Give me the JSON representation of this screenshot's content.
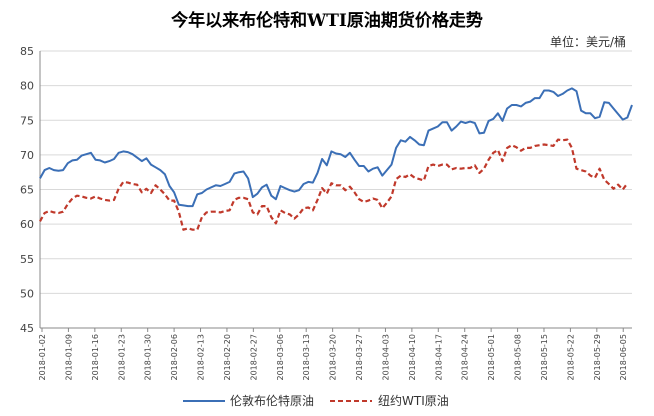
{
  "chart_data": {
    "type": "line",
    "title": "今年以来布伦特和WTI原油期货价格走势",
    "unit_label": "单位：美元/桶",
    "ylim": [
      45,
      85
    ],
    "yticks": [
      45,
      50,
      55,
      60,
      65,
      70,
      75,
      80,
      85
    ],
    "x_ticks": [
      "2018-01-02",
      "2018-01-09",
      "2018-01-16",
      "2018-01-23",
      "2018-01-30",
      "2018-02-06",
      "2018-02-13",
      "2018-02-20",
      "2018-02-27",
      "2018-03-06",
      "2018-03-13",
      "2018-03-20",
      "2018-03-27",
      "2018-04-03",
      "2018-04-10",
      "2018-04-17",
      "2018-04-24",
      "2018-05-01",
      "2018-05-08",
      "2018-05-15",
      "2018-05-22",
      "2018-05-29",
      "2018-06-05"
    ],
    "legend_placement": "bottom",
    "series": [
      {
        "name": "伦敦布伦特原油",
        "color": "#3b6fb6",
        "style": "solid",
        "values": [
          66.6,
          67.8,
          68.1,
          67.8,
          67.7,
          67.8,
          68.8,
          69.2,
          69.3,
          69.9,
          70.1,
          70.3,
          69.3,
          69.2,
          68.9,
          69.1,
          69.4,
          70.3,
          70.5,
          70.4,
          70.1,
          69.6,
          69.1,
          69.5,
          68.6,
          68.2,
          67.8,
          67.2,
          65.5,
          64.6,
          62.8,
          62.7,
          62.6,
          62.6,
          64.3,
          64.5,
          65.0,
          65.3,
          65.6,
          65.5,
          65.8,
          66.1,
          67.3,
          67.5,
          67.6,
          66.6,
          63.9,
          64.4,
          65.3,
          65.7,
          64.1,
          63.6,
          65.5,
          65.2,
          64.9,
          64.7,
          64.9,
          65.8,
          66.1,
          66.0,
          67.4,
          69.4,
          68.5,
          70.5,
          70.2,
          70.1,
          69.7,
          70.3,
          69.3,
          68.4,
          68.4,
          67.6,
          68.0,
          68.2,
          67.0,
          67.8,
          68.6,
          71.0,
          72.1,
          71.9,
          72.6,
          72.1,
          71.5,
          71.4,
          73.5,
          73.8,
          74.1,
          74.7,
          74.7,
          73.5,
          74.1,
          74.8,
          74.6,
          74.8,
          74.6,
          73.1,
          73.2,
          74.9,
          75.2,
          76.0,
          74.9,
          76.7,
          77.2,
          77.2,
          77.0,
          77.5,
          77.7,
          78.2,
          78.2,
          79.3,
          79.3,
          79.1,
          78.5,
          78.8,
          79.3,
          79.6,
          79.2,
          76.4,
          76.0,
          76.0,
          75.3,
          75.5,
          77.6,
          77.5,
          76.7,
          75.9,
          75.1,
          75.4,
          77.2
        ]
      },
      {
        "name": "纽约WTI原油",
        "color": "#c0392b",
        "style": "dashed",
        "values": [
          60.4,
          61.6,
          61.9,
          61.7,
          61.6,
          61.8,
          62.9,
          63.7,
          64.1,
          64.0,
          63.8,
          63.7,
          64.0,
          63.7,
          63.5,
          63.4,
          63.5,
          65.1,
          66.1,
          66.0,
          65.8,
          65.7,
          64.6,
          65.1,
          64.5,
          65.6,
          65.0,
          64.3,
          63.4,
          63.4,
          61.8,
          59.2,
          59.4,
          59.2,
          59.2,
          61.0,
          61.7,
          61.8,
          61.8,
          61.7,
          61.9,
          62.0,
          63.5,
          63.8,
          63.8,
          63.6,
          61.7,
          61.4,
          62.6,
          62.6,
          61.0,
          60.1,
          62.0,
          61.6,
          61.4,
          60.8,
          61.4,
          62.3,
          62.4,
          62.0,
          63.5,
          65.2,
          64.4,
          65.9,
          65.6,
          65.6,
          64.9,
          65.4,
          64.6,
          63.6,
          63.2,
          63.4,
          63.7,
          63.5,
          62.3,
          63.1,
          64.0,
          66.5,
          67.0,
          66.8,
          67.2,
          66.7,
          66.5,
          66.3,
          68.4,
          68.6,
          68.4,
          68.6,
          68.6,
          67.9,
          68.1,
          68.0,
          68.1,
          68.1,
          68.5,
          67.4,
          68.0,
          69.3,
          70.3,
          70.7,
          69.1,
          71.0,
          71.4,
          71.1,
          70.6,
          71.0,
          71.0,
          71.3,
          71.4,
          71.5,
          71.4,
          71.3,
          72.2,
          72.1,
          72.2,
          71.0,
          68.0,
          67.8,
          67.6,
          67.0,
          66.7,
          68.0,
          66.4,
          65.8,
          65.1,
          65.7,
          65.0,
          65.9
        ]
      }
    ]
  }
}
